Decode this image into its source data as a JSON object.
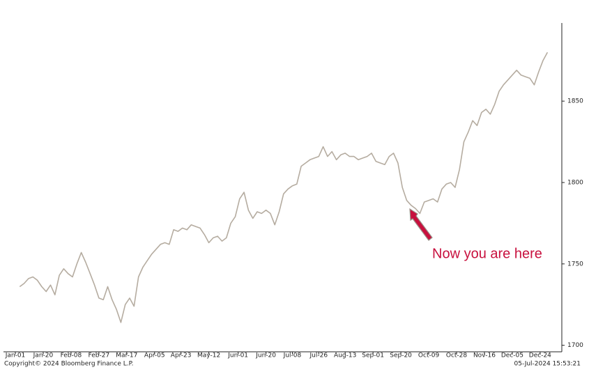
{
  "chart_data": {
    "type": "line",
    "x": [
      "Jan-04",
      "Jan-07",
      "Jan-10",
      "Jan-13",
      "Jan-16",
      "Jan-19",
      "Jan-22",
      "Jan-25",
      "Jan-28",
      "Jan-31",
      "Feb-03",
      "Feb-06",
      "Feb-09",
      "Feb-12",
      "Feb-15",
      "Feb-18",
      "Feb-21",
      "Feb-24",
      "Feb-27",
      "Mar-01",
      "Mar-04",
      "Mar-07",
      "Mar-10",
      "Mar-13",
      "Mar-16",
      "Mar-19",
      "Mar-22",
      "Mar-25",
      "Mar-28",
      "Mar-31",
      "Apr-03",
      "Apr-06",
      "Apr-09",
      "Apr-12",
      "Apr-15",
      "Apr-18",
      "Apr-21",
      "Apr-24",
      "Apr-27",
      "Apr-30",
      "May-03",
      "May-06",
      "May-09",
      "May-12",
      "May-15",
      "May-18",
      "May-21",
      "May-24",
      "May-27",
      "May-30",
      "Jun-02",
      "Jun-05",
      "Jun-08",
      "Jun-11",
      "Jun-14",
      "Jun-17",
      "Jun-20",
      "Jun-23",
      "Jun-26",
      "Jun-29",
      "Jul-02",
      "Jul-05",
      "Jul-08",
      "Jul-11",
      "Jul-14",
      "Jul-17",
      "Jul-20",
      "Jul-23",
      "Jul-26",
      "Jul-29",
      "Aug-01",
      "Aug-04",
      "Aug-07",
      "Aug-10",
      "Aug-13",
      "Aug-16",
      "Aug-19",
      "Aug-22",
      "Aug-25",
      "Aug-28",
      "Aug-31",
      "Sep-03",
      "Sep-06",
      "Sep-09",
      "Sep-12",
      "Sep-15",
      "Sep-18",
      "Sep-21",
      "Sep-24",
      "Sep-27",
      "Sep-30",
      "Oct-03",
      "Oct-06",
      "Oct-09",
      "Oct-12",
      "Oct-15",
      "Oct-18",
      "Oct-21",
      "Oct-24",
      "Oct-27",
      "Oct-30",
      "Nov-02",
      "Nov-05",
      "Nov-08",
      "Nov-11",
      "Nov-14",
      "Nov-17",
      "Nov-20",
      "Nov-23",
      "Nov-26",
      "Nov-29",
      "Dec-02",
      "Dec-05",
      "Dec-08",
      "Dec-11",
      "Dec-14",
      "Dec-17",
      "Dec-20",
      "Dec-23",
      "Dec-26",
      "Dec-29"
    ],
    "series": [
      {
        "color": "#b5aca0",
        "values": [
          1736,
          1738,
          1741,
          1742,
          1740,
          1736,
          1733,
          1737,
          1731,
          1743,
          1747,
          1744,
          1742,
          1750,
          1757,
          1751,
          1744,
          1737,
          1729,
          1728,
          1736,
          1728,
          1722,
          1714,
          1725,
          1729,
          1724,
          1742,
          1748,
          1752,
          1756,
          1759,
          1762,
          1763,
          1762,
          1771,
          1770,
          1772,
          1771,
          1774,
          1773,
          1772,
          1768,
          1763,
          1766,
          1767,
          1764,
          1766,
          1775,
          1779,
          1790,
          1794,
          1783,
          1778,
          1782,
          1781,
          1783,
          1781,
          1774,
          1782,
          1793,
          1796,
          1798,
          1799,
          1810,
          1812,
          1814,
          1815,
          1816,
          1822,
          1816,
          1819,
          1814,
          1817,
          1818,
          1816,
          1816,
          1814,
          1815,
          1816,
          1818,
          1813,
          1812,
          1811,
          1816,
          1818,
          1812,
          1797,
          1789,
          1786,
          1784,
          1781,
          1788,
          1789,
          1790,
          1788,
          1796,
          1799,
          1800,
          1797,
          1808,
          1825,
          1831,
          1838,
          1835,
          1843,
          1845,
          1842,
          1848,
          1856,
          1860,
          1863,
          1866,
          1869,
          1866,
          1865,
          1864,
          1860,
          1868,
          1875,
          1880
        ]
      }
    ],
    "xticks": [
      "Jan-01",
      "Jan-20",
      "Feb-08",
      "Feb-27",
      "Mar-17",
      "Apr-05",
      "Apr-23",
      "May-12",
      "Jun-01",
      "Jun-20",
      "Jul-08",
      "Jul-26",
      "Aug-13",
      "Sep-01",
      "Sep-20",
      "Oct-09",
      "Oct-28",
      "Nov-16",
      "Dec-05",
      "Dec-24"
    ],
    "ylim": [
      1696,
      1898
    ],
    "yticks": [
      1700,
      1750,
      1800,
      1850
    ],
    "yaxis_side": "right",
    "grid": false,
    "annotation": "Now you are here",
    "footer_left": "Copyright© 2024 Bloomberg Finance L.P.",
    "footer_right": "05-Jul-2024 15:53:21"
  }
}
